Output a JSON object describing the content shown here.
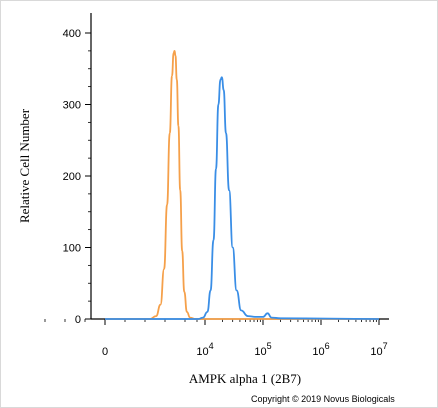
{
  "chart_data": {
    "type": "line",
    "xlabel": "AMPK alpha 1 (2B7)",
    "ylabel": "Relative Cell Number",
    "x_scale": "biexponential",
    "ylim": [
      0,
      400
    ],
    "y_ticks": [
      0,
      100,
      200,
      300,
      400
    ],
    "x_ticks": [
      {
        "value": 0,
        "base": "0",
        "exp": ""
      },
      {
        "value": 10000,
        "base": "10",
        "exp": "4"
      },
      {
        "value": 100000,
        "base": "10",
        "exp": "5"
      },
      {
        "value": 1000000,
        "base": "10",
        "exp": "6"
      },
      {
        "value": 10000000,
        "base": "10",
        "exp": "7"
      }
    ],
    "grid": false,
    "series": [
      {
        "color": "#F5A04A",
        "points": [
          [
            0,
            0
          ],
          [
            500,
            0
          ],
          [
            700,
            4
          ],
          [
            900,
            20
          ],
          [
            1100,
            70
          ],
          [
            1300,
            160
          ],
          [
            1500,
            260
          ],
          [
            1700,
            340
          ],
          [
            1850,
            372
          ],
          [
            1950,
            375
          ],
          [
            2050,
            368
          ],
          [
            2200,
            335
          ],
          [
            2400,
            270
          ],
          [
            2650,
            180
          ],
          [
            2950,
            95
          ],
          [
            3300,
            38
          ],
          [
            3800,
            10
          ],
          [
            4500,
            2
          ],
          [
            6000,
            0
          ],
          [
            10000000,
            0
          ]
        ]
      },
      {
        "color": "#3A8EE6",
        "points": [
          [
            0,
            0
          ],
          [
            5000,
            0
          ],
          [
            7000,
            0
          ],
          [
            9000,
            2
          ],
          [
            11000,
            10
          ],
          [
            12500,
            40
          ],
          [
            14000,
            110
          ],
          [
            15500,
            210
          ],
          [
            17000,
            300
          ],
          [
            18500,
            335
          ],
          [
            19500,
            338
          ],
          [
            21000,
            320
          ],
          [
            23000,
            260
          ],
          [
            26000,
            180
          ],
          [
            30000,
            100
          ],
          [
            35000,
            40
          ],
          [
            42000,
            12
          ],
          [
            55000,
            4
          ],
          [
            75000,
            3
          ],
          [
            100000,
            3
          ],
          [
            120000,
            8
          ],
          [
            140000,
            2
          ],
          [
            200000,
            1
          ],
          [
            10000000,
            0
          ]
        ]
      }
    ]
  },
  "copyright": "Copyright © 2019 Novus Biologicals"
}
